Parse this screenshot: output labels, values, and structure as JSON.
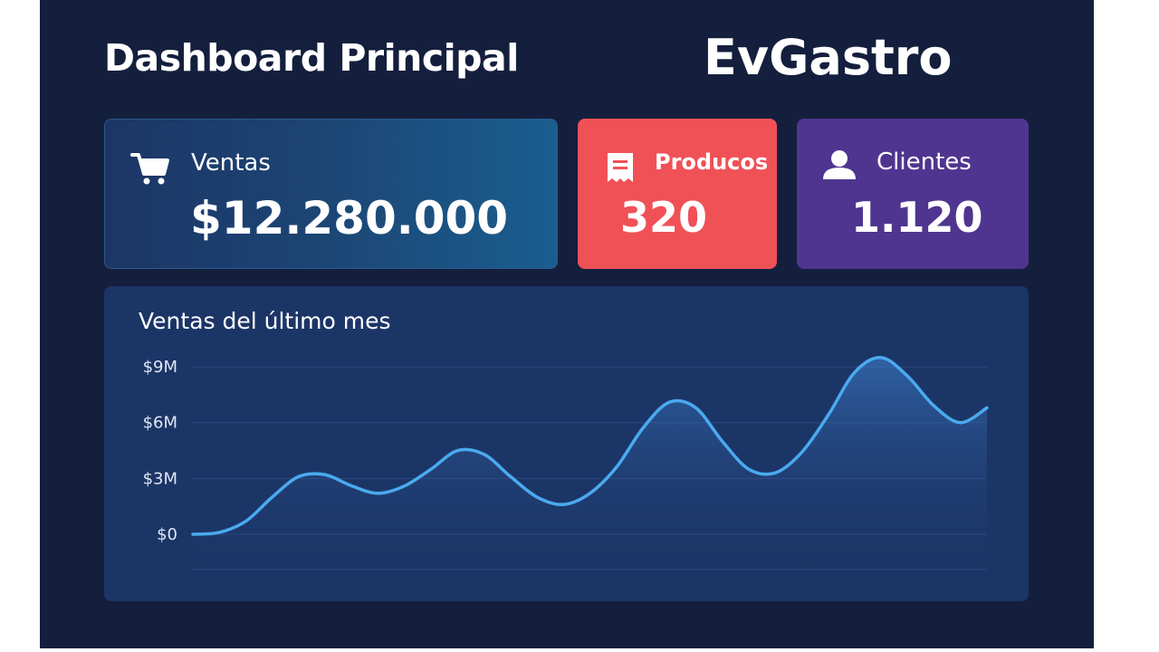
{
  "header": {
    "title": "Dashboard Principal",
    "brand": "EvGastro"
  },
  "cards": {
    "sales": {
      "label": "Ventas",
      "value": "$12.280.000",
      "icon": "shopping-cart-icon"
    },
    "products": {
      "label": "Producos",
      "value": "320",
      "icon": "receipt-icon"
    },
    "clients": {
      "label": "Clientes",
      "value": "1.120",
      "icon": "user-icon"
    }
  },
  "colors": {
    "background": "#141f3d",
    "products_card": "#f05157",
    "clients_card": "#4f358f",
    "chart_line": "#4aaaf0"
  },
  "chart_data": {
    "type": "area",
    "title": "Ventas del último mes",
    "xlabel": "",
    "ylabel": "",
    "y_tick_labels": [
      "$0",
      "$3M",
      "$6M",
      "$9M"
    ],
    "y_ticks": [
      0,
      3,
      6,
      9
    ],
    "ylim": [
      -1.9,
      9.2
    ],
    "grid": true,
    "x": [
      0,
      1,
      2,
      3,
      4,
      5,
      6,
      7,
      8,
      9,
      10,
      11,
      12,
      13,
      14,
      15,
      16,
      17,
      18,
      19,
      20,
      21,
      22,
      23,
      24,
      25,
      26,
      27,
      28,
      29,
      30
    ],
    "values": [
      0.0,
      0.1,
      0.7,
      2.0,
      3.1,
      3.2,
      2.6,
      2.2,
      2.6,
      3.5,
      4.5,
      4.3,
      3.1,
      2.0,
      1.6,
      2.2,
      3.6,
      5.7,
      7.1,
      6.8,
      5.0,
      3.5,
      3.3,
      4.4,
      6.4,
      8.7,
      9.5,
      8.5,
      6.9,
      6.0,
      6.8
    ]
  }
}
